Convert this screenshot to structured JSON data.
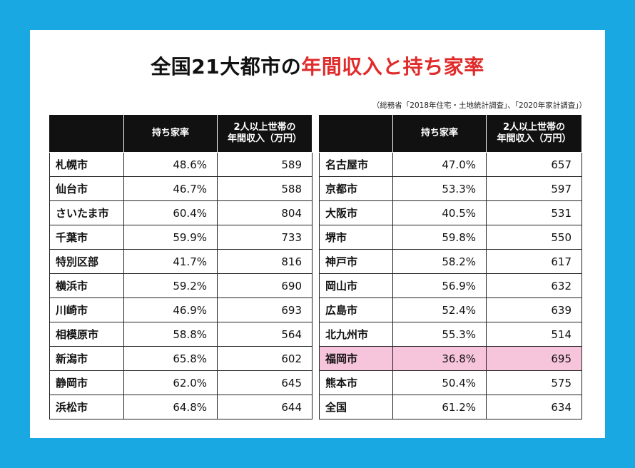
{
  "title": {
    "prefix": "全国21大都市の",
    "accent": "年間収入と持ち家率"
  },
  "source": "（総務省「2018年住宅・土地統計調査」、「2020年家計調査」）",
  "colors": {
    "background": "#1aa8e2",
    "title_accent": "#e02b2b",
    "header_bg": "#111111",
    "highlight_row": "#f6c5dc"
  },
  "headers": {
    "city": "",
    "rate": "持ち家率",
    "income_line1": "2人以上世帯の",
    "income_line2": "年間収入（万円）"
  },
  "left_table": [
    {
      "city": "札幌市",
      "rate": "48.6%",
      "income": "589"
    },
    {
      "city": "仙台市",
      "rate": "46.7%",
      "income": "588"
    },
    {
      "city": "さいたま市",
      "rate": "60.4%",
      "income": "804"
    },
    {
      "city": "千葉市",
      "rate": "59.9%",
      "income": "733"
    },
    {
      "city": "特別区部",
      "rate": "41.7%",
      "income": "816"
    },
    {
      "city": "横浜市",
      "rate": "59.2%",
      "income": "690"
    },
    {
      "city": "川崎市",
      "rate": "46.9%",
      "income": "693"
    },
    {
      "city": "相模原市",
      "rate": "58.8%",
      "income": "564"
    },
    {
      "city": "新潟市",
      "rate": "65.8%",
      "income": "602"
    },
    {
      "city": "静岡市",
      "rate": "62.0%",
      "income": "645"
    },
    {
      "city": "浜松市",
      "rate": "64.8%",
      "income": "644"
    }
  ],
  "right_table": [
    {
      "city": "名古屋市",
      "rate": "47.0%",
      "income": "657"
    },
    {
      "city": "京都市",
      "rate": "53.3%",
      "income": "597"
    },
    {
      "city": "大阪市",
      "rate": "40.5%",
      "income": "531"
    },
    {
      "city": "堺市",
      "rate": "59.8%",
      "income": "550"
    },
    {
      "city": "神戸市",
      "rate": "58.2%",
      "income": "617"
    },
    {
      "city": "岡山市",
      "rate": "56.9%",
      "income": "632"
    },
    {
      "city": "広島市",
      "rate": "52.4%",
      "income": "639"
    },
    {
      "city": "北九州市",
      "rate": "55.3%",
      "income": "514"
    },
    {
      "city": "福岡市",
      "rate": "36.8%",
      "income": "695",
      "highlight": true
    },
    {
      "city": "熊本市",
      "rate": "50.4%",
      "income": "575"
    },
    {
      "city": "全国",
      "rate": "61.2%",
      "income": "634"
    }
  ]
}
